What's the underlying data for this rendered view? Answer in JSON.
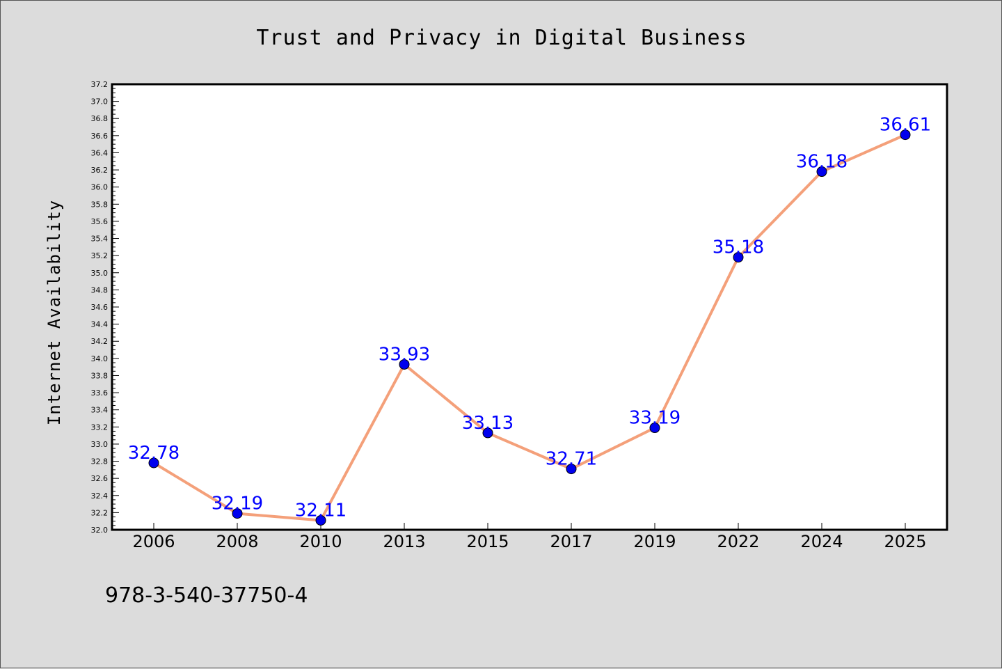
{
  "chart_data": {
    "type": "line",
    "title": "Trust and Privacy in Digital Business",
    "xlabel": "",
    "ylabel": "Internet Availability",
    "categories": [
      "2006",
      "2008",
      "2010",
      "2013",
      "2015",
      "2017",
      "2019",
      "2022",
      "2024",
      "2025"
    ],
    "series": [
      {
        "values": [
          32.78,
          32.19,
          32.11,
          33.93,
          33.13,
          32.71,
          33.19,
          35.18,
          36.18,
          36.61
        ],
        "labels": [
          "32.78",
          "32.19",
          "32.11",
          "33.93",
          "33.13",
          "32.71",
          "33.19",
          "35.18",
          "36.18",
          "36.61"
        ],
        "line_color": "#f4a07a",
        "marker_color": "#0000ee"
      }
    ],
    "ylim": [
      32.0,
      37.2
    ],
    "yticks": [
      "32.0",
      "32.2",
      "32.4",
      "32.6",
      "32.8",
      "33.0",
      "33.2",
      "33.4",
      "33.6",
      "33.8",
      "34.0",
      "34.2",
      "34.4",
      "34.6",
      "34.8",
      "35.0",
      "35.2",
      "35.4",
      "35.6",
      "35.8",
      "36.0",
      "36.2",
      "36.4",
      "36.6",
      "36.8",
      "37.0",
      "37.2"
    ],
    "grid": false,
    "legend": "none",
    "data_label_color": "#0000ff",
    "footnote": "978-3-540-37750-4"
  }
}
